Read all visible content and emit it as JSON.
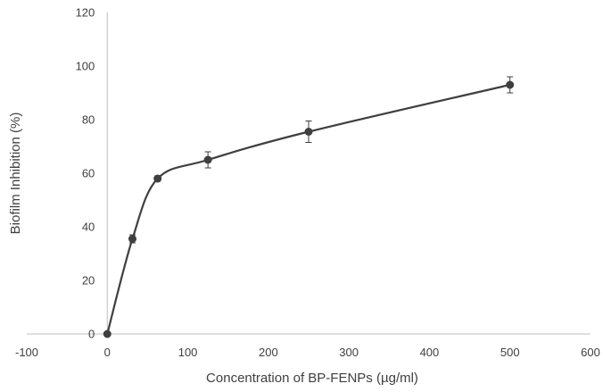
{
  "chart_data": {
    "type": "scatter",
    "title": "",
    "xlabel": "Concentration of BP-FENPs (µg/ml)",
    "ylabel": "Biofilm Inhibition (%)",
    "xlim": [
      -100,
      600
    ],
    "ylim": [
      0,
      120
    ],
    "x_ticks": [
      -100,
      0,
      100,
      200,
      300,
      400,
      500,
      600
    ],
    "y_ticks": [
      0,
      20,
      40,
      60,
      80,
      100,
      120
    ],
    "x_tick_labels": [
      "-100",
      "0",
      "100",
      "200",
      "300",
      "400",
      "500",
      "600"
    ],
    "y_tick_labels": [
      "0",
      "20",
      "40",
      "60",
      "80",
      "100",
      "120"
    ],
    "grid": false,
    "legend": "none",
    "smooth_line": true,
    "colors": {
      "series": "#3f3f3f",
      "axis": "#bfbfbf",
      "text": "#404040"
    },
    "series": [
      {
        "x": [
          0,
          31.25,
          62.5,
          125,
          250,
          500
        ],
        "y": [
          0,
          35.5,
          58,
          65,
          75.5,
          93
        ],
        "error": [
          0.5,
          1.5,
          1,
          3,
          4,
          3
        ]
      }
    ]
  }
}
